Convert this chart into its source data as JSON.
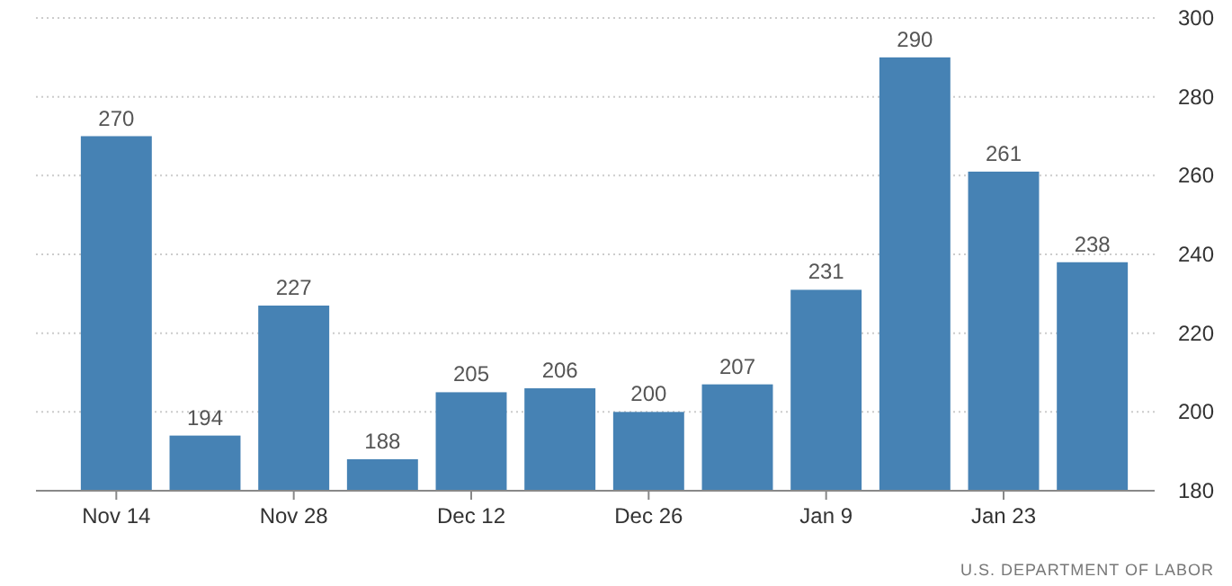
{
  "chart_data": {
    "type": "bar",
    "categories": [
      "Nov 14",
      null,
      "Nov 28",
      null,
      "Dec 12",
      null,
      "Dec 26",
      null,
      "Jan 9",
      null,
      "Jan 23",
      null
    ],
    "values": [
      270,
      194,
      227,
      188,
      205,
      206,
      200,
      207,
      231,
      290,
      261,
      238
    ],
    "color": "#4682b4",
    "ylim": [
      180,
      300
    ],
    "yticks": [
      180,
      200,
      220,
      240,
      260,
      280,
      300
    ],
    "grid": "y",
    "data_labels": true,
    "annotations": [
      "U.S. DEPARTMENT OF LABOR"
    ]
  }
}
